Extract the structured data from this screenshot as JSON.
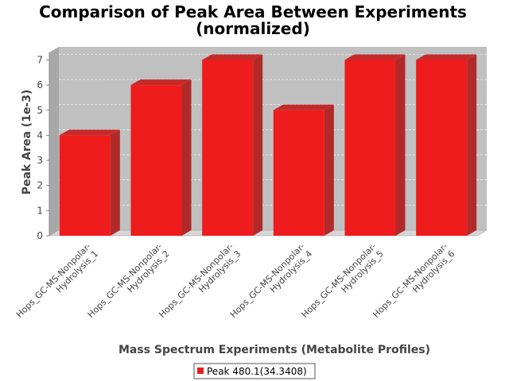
{
  "chart_data": {
    "type": "bar",
    "title_line1": "Comparison of Peak Area Between Experiments",
    "title_line2": "(normalized)",
    "xlabel": "Mass Spectrum Experiments (Metabolite Profiles)",
    "ylabel": "Peak Area (1e-3)",
    "ylim": [
      0,
      7.3
    ],
    "yticks": [
      0,
      1,
      2,
      3,
      4,
      5,
      6,
      7
    ],
    "grid": true,
    "legend_position": "bottom",
    "categories": [
      {
        "line1": "Hops_GC-MS-Nonpolar-",
        "line2": "Hydrolysis_1"
      },
      {
        "line1": "Hops_GC-MS-Nonpolar-",
        "line2": "Hydrolysis_2"
      },
      {
        "line1": "Hops_GC-MS-Nonpolar-",
        "line2": "Hydrolysis_3"
      },
      {
        "line1": "Hops_GC-MS-Nonpolar-",
        "line2": "Hydrolysis_4"
      },
      {
        "line1": "Hops_GC-MS-Nonpolar-",
        "line2": "Hydrolysis_5"
      },
      {
        "line1": "Hops_GC-MS-Nonpolar-",
        "line2": "Hydrolysis_6"
      }
    ],
    "series": [
      {
        "name": "Peak 480.1(34.3408)",
        "values": [
          4,
          6,
          7,
          5,
          7,
          7
        ],
        "color": "#ee1c1c"
      }
    ],
    "plot_background": "#c0c0c0"
  }
}
